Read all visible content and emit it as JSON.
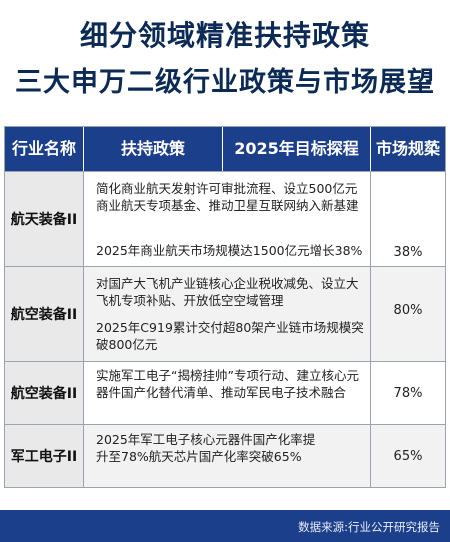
{
  "title": {
    "line1": "细分领域精准扶持政策",
    "line2": "三大申万二级行业政策与市场展望"
  },
  "table": {
    "headers": [
      "行业名称",
      "扶持政策",
      "2025年目标探程",
      "市场规蒅"
    ],
    "rows": [
      {
        "industry": "航天装备II",
        "policy": "简化商业航天发射许可审批流程、设立500亿元商业航天专项基金、推动卫星互联网纳入新基建",
        "target": "2025年商业航天市场规模达1500亿元增长38%",
        "market": "38%"
      },
      {
        "industry": "航空装备II",
        "policy": "对国产大飞机产业链核心企业税收减免、设立大飞机专项补贴、开放低空空域管理",
        "target": "2025年C919累计交付超80架产业链市场规模突破800亿元",
        "market": "80%"
      },
      {
        "industry": "航空装备II",
        "policy": "实施军工电子“揭榜挂帅”专项行动、建立核心元器件国产化替代清单、推动军民电子技术融合",
        "target": "",
        "market": "78%"
      },
      {
        "industry": "军工电子II",
        "policy": "2025年军工电子核心元器件国产化率提升至78%航天芯片国产化率突破65%",
        "target": "",
        "market": "65%"
      }
    ]
  },
  "footer": {
    "source": "数据来源:行业公开研究报告"
  }
}
